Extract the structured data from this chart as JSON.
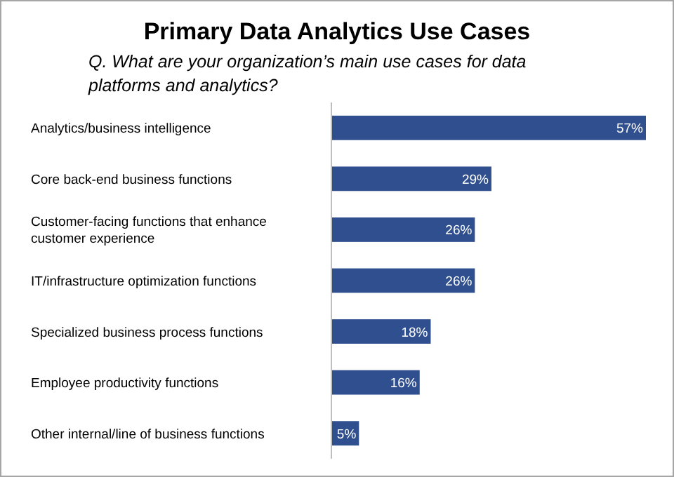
{
  "chart_data": {
    "type": "bar",
    "orientation": "horizontal",
    "title": "Primary Data Analytics Use Cases",
    "subtitle": "Q.  What are your organization’s main use cases for data platforms and analytics?",
    "categories": [
      "Analytics/business intelligence",
      "Core back-end business functions",
      "Customer-facing functions that enhance customer experience",
      "IT/infrastructure optimization functions",
      "Specialized business process functions",
      "Employee productivity functions",
      "Other internal/line of business functions"
    ],
    "values": [
      57,
      29,
      26,
      26,
      18,
      16,
      5
    ],
    "value_labels": [
      "57%",
      "29%",
      "26%",
      "26%",
      "18%",
      "16%",
      "5%"
    ],
    "color": "#2f4f8f"
  }
}
